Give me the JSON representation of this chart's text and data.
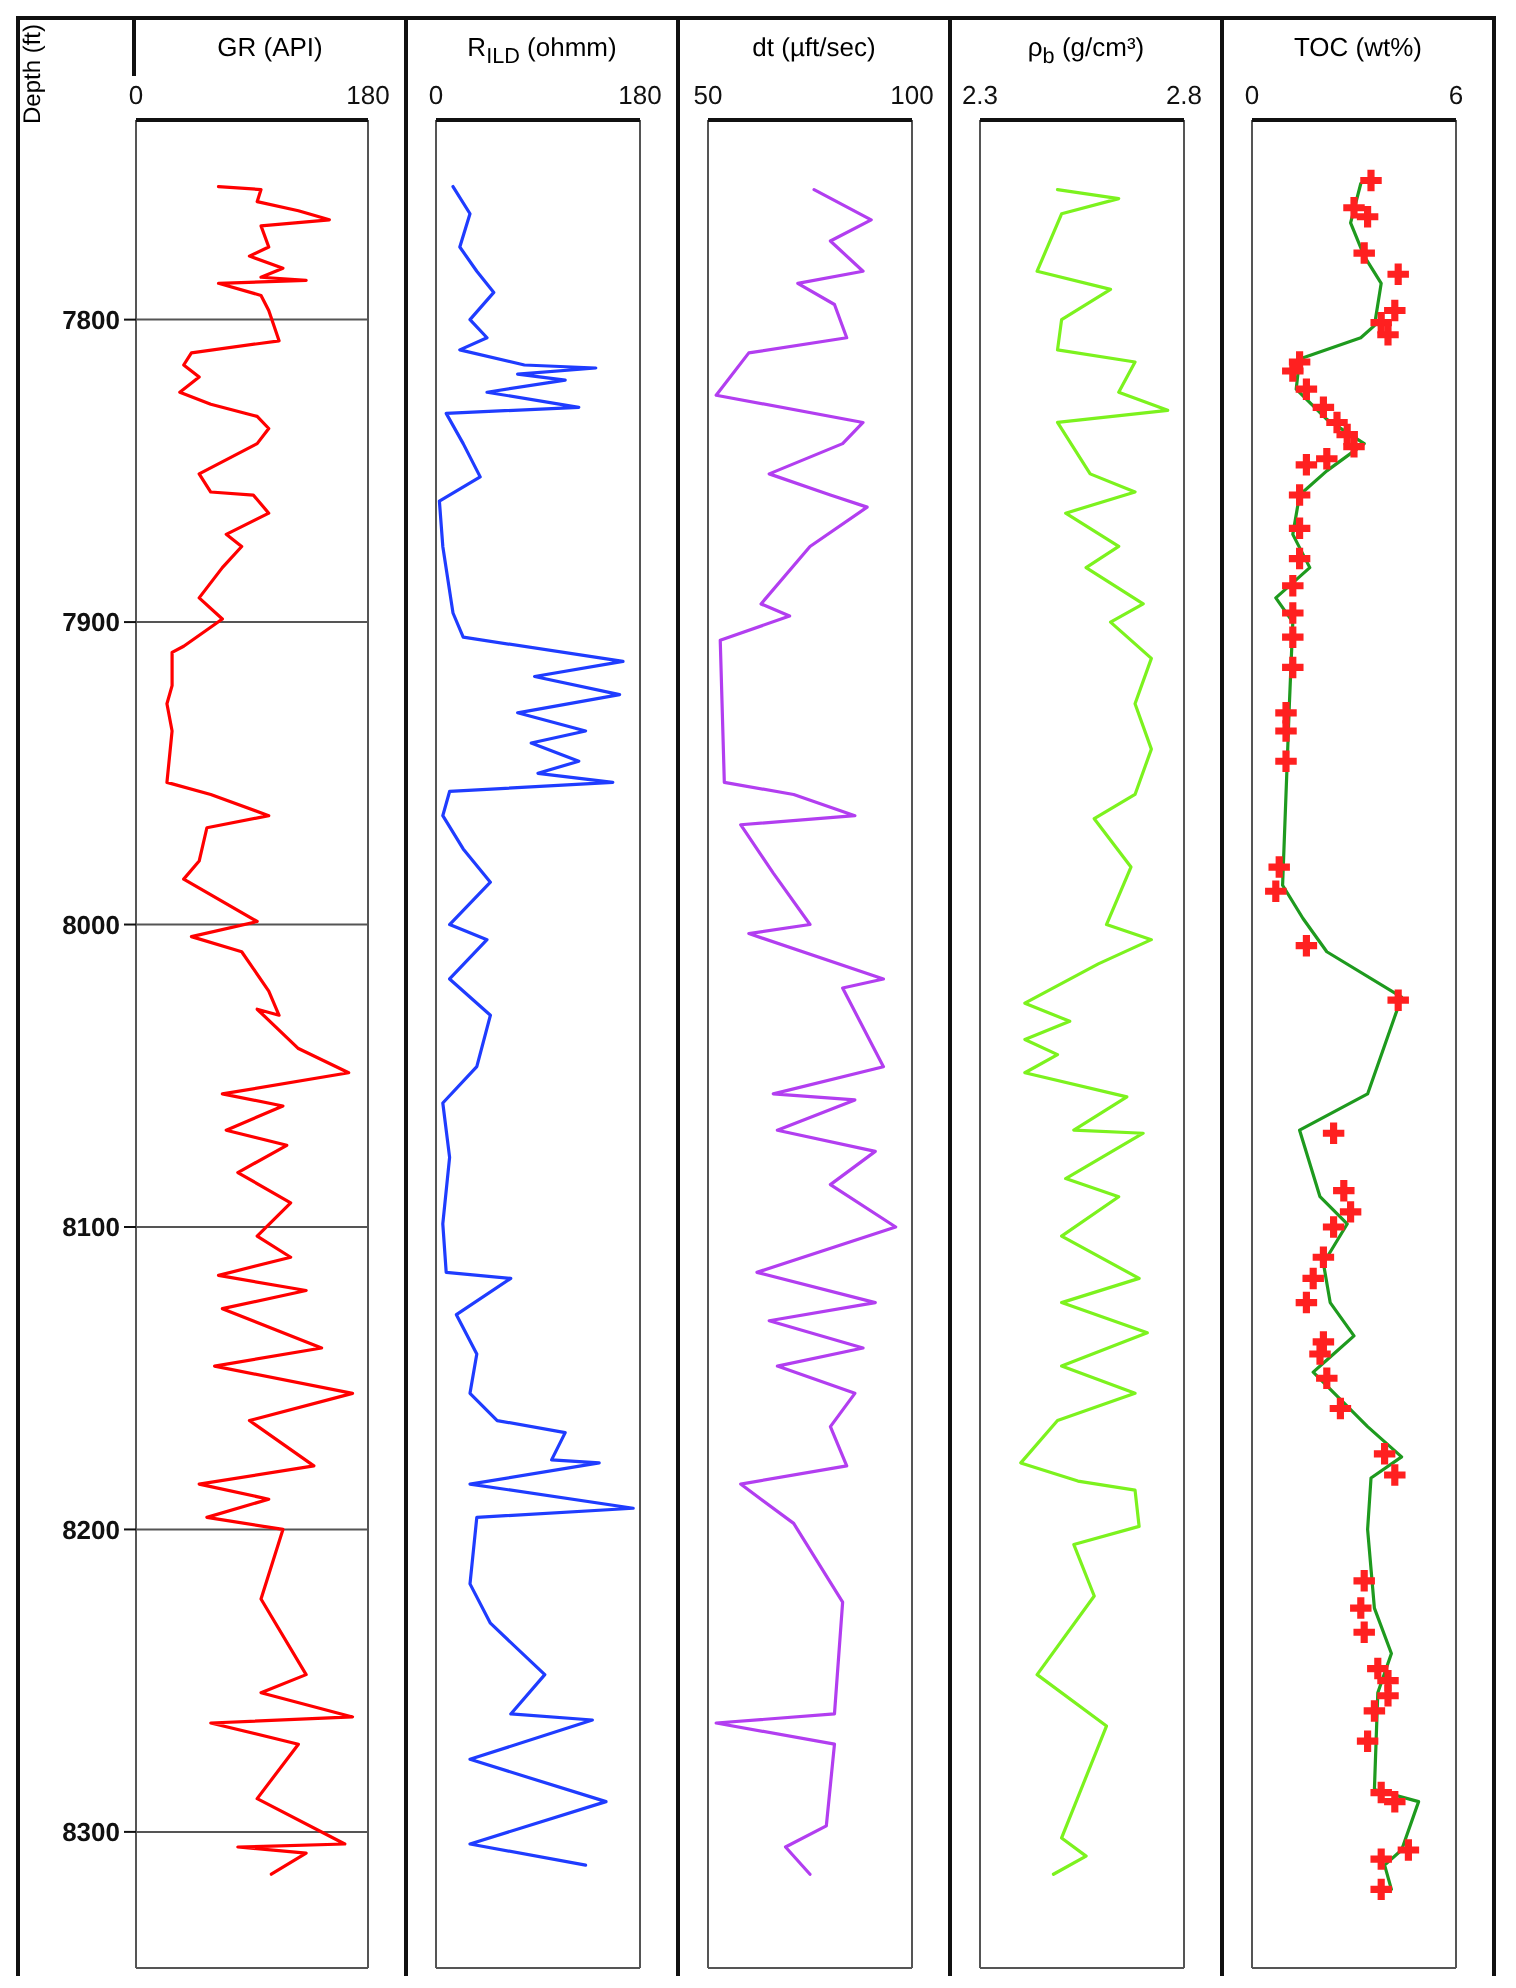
{
  "chart_data": [
    {
      "type": "line",
      "title": "GR (API)",
      "ylabel": "Depth (ft)",
      "xlim": [
        0,
        180
      ],
      "xticks": [
        0,
        180
      ],
      "ylim": [
        8345,
        7734
      ],
      "yticks": [
        7800,
        7900,
        8000,
        8100,
        8200,
        8300
      ],
      "grid": true,
      "series": [
        {
          "color": "#ff0000",
          "x": [
            64,
            97,
            94,
            126,
            150,
            97,
            103,
            88,
            114,
            97,
            132,
            64,
            97,
            103,
            111,
            43,
            37,
            49,
            34,
            58,
            94,
            103,
            94,
            49,
            58,
            91,
            103,
            70,
            82,
            67,
            49,
            67,
            37,
            28,
            28,
            24,
            28,
            24,
            58,
            103,
            55,
            49,
            37,
            94,
            43,
            82,
            103,
            111,
            94,
            126,
            165,
            67,
            114,
            70,
            117,
            79,
            120,
            94,
            120,
            64,
            132,
            67,
            144,
            61,
            168,
            88,
            138,
            49,
            103,
            55,
            114,
            97,
            132,
            97,
            168,
            58,
            126,
            94,
            162,
            79,
            132,
            105
          ],
          "values": [
            7756,
            7757,
            7761,
            7764,
            7767,
            7769,
            7776,
            7779,
            7783,
            7786,
            7787,
            7788,
            7792,
            7797,
            7807,
            7811,
            7815,
            7819,
            7824,
            7828,
            7832,
            7836,
            7841,
            7851,
            7857,
            7858,
            7864,
            7871,
            7875,
            7882,
            7892,
            7899,
            7908,
            7910,
            7921,
            7927,
            7936,
            7953,
            7957,
            7964,
            7968,
            7979,
            7985,
            7999,
            8004,
            8009,
            8022,
            8030,
            8028,
            8041,
            8049,
            8056,
            8060,
            8068,
            8073,
            8082,
            8092,
            8103,
            8110,
            8116,
            8121,
            8127,
            8140,
            8146,
            8155,
            8164,
            8179,
            8185,
            8190,
            8196,
            8200,
            8223,
            8248,
            8254,
            8262,
            8264,
            8271,
            8289,
            8304,
            8305,
            8307,
            8314
          ]
        }
      ]
    },
    {
      "type": "line",
      "title": "R$_{ILD}$ (ohmm)",
      "xlim": [
        0,
        180
      ],
      "xticks": [
        0,
        180
      ],
      "ylim": [
        8345,
        7734
      ],
      "yticks": [
        7800,
        7900,
        8000,
        8100,
        8200,
        8300
      ],
      "grid": true,
      "tick_labels": "x",
      "series": [
        {
          "color": "#1f3cff",
          "x": [
            15,
            30,
            21,
            36,
            51,
            30,
            45,
            21,
            78,
            141,
            72,
            114,
            45,
            126,
            9,
            24,
            39,
            3,
            6,
            15,
            24,
            165,
            87,
            162,
            72,
            132,
            84,
            126,
            90,
            156,
            12,
            6,
            24,
            48,
            12,
            45,
            12,
            48,
            36,
            6,
            12,
            6,
            9,
            66,
            18,
            36,
            30,
            54,
            114,
            102,
            144,
            30,
            174,
            36,
            30,
            48,
            96,
            66,
            138,
            30,
            150,
            30,
            132
          ],
          "values": [
            7756,
            7765,
            7776,
            7784,
            7791,
            7800,
            7806,
            7810,
            7815,
            7816,
            7818,
            7820,
            7824,
            7829,
            7831,
            7841,
            7852,
            7860,
            7875,
            7897,
            7905,
            7913,
            7918,
            7924,
            7930,
            7936,
            7940,
            7946,
            7950,
            7953,
            7956,
            7964,
            7975,
            7986,
            8000,
            8005,
            8018,
            8030,
            8047,
            8059,
            8077,
            8099,
            8115,
            8117,
            8129,
            8142,
            8155,
            8164,
            8168,
            8177,
            8178,
            8185,
            8193,
            8196,
            8218,
            8231,
            8248,
            8261,
            8263,
            8276,
            8290,
            8304,
            8311
          ]
        }
      ]
    },
    {
      "type": "line",
      "title": "dt (µft/sec)",
      "xlim": [
        50,
        100
      ],
      "xticks": [
        50,
        100
      ],
      "ylim": [
        8345,
        7734
      ],
      "yticks": [
        7800,
        7900,
        8000,
        8100,
        8200,
        8300
      ],
      "grid": true,
      "tick_labels": "x",
      "series": [
        {
          "color": "#b23ef0",
          "x": [
            76,
            90,
            80,
            88,
            72,
            81,
            84,
            60,
            52,
            88,
            83,
            65,
            80,
            89,
            75,
            63,
            70,
            53,
            54,
            71,
            86,
            58,
            66,
            75,
            60,
            93,
            83,
            93,
            66,
            86,
            67,
            91,
            80,
            96,
            62,
            91,
            65,
            88,
            67,
            86,
            80,
            84,
            58,
            71,
            83,
            81,
            52,
            81,
            79,
            69,
            75
          ],
          "values": [
            7757,
            7767,
            7774,
            7784,
            7788,
            7795,
            7806,
            7811,
            7825,
            7834,
            7841,
            7851,
            7858,
            7862,
            7875,
            7894,
            7898,
            7906,
            7953,
            7957,
            7964,
            7967,
            7983,
            8000,
            8003,
            8018,
            8021,
            8047,
            8056,
            8058,
            8068,
            8075,
            8086,
            8100,
            8115,
            8125,
            8131,
            8140,
            8146,
            8155,
            8166,
            8179,
            8185,
            8198,
            8224,
            8261,
            8264,
            8271,
            8298,
            8305,
            8314
          ]
        }
      ]
    },
    {
      "type": "line",
      "title": "ρ$_{b}$ (g/cm³)",
      "xlim": [
        2.3,
        2.8
      ],
      "xticks": [
        2.3,
        2.8
      ],
      "ylim": [
        8345,
        7734
      ],
      "yticks": [
        7800,
        7900,
        8000,
        8100,
        8200,
        8300
      ],
      "grid": true,
      "tick_labels": "x",
      "series": [
        {
          "color": "#7cf21e",
          "x": [
            2.49,
            2.64,
            2.5,
            2.44,
            2.62,
            2.5,
            2.49,
            2.68,
            2.64,
            2.76,
            2.49,
            2.57,
            2.68,
            2.51,
            2.64,
            2.56,
            2.7,
            2.62,
            2.72,
            2.68,
            2.72,
            2.68,
            2.58,
            2.67,
            2.61,
            2.72,
            2.59,
            2.41,
            2.52,
            2.41,
            2.49,
            2.41,
            2.66,
            2.53,
            2.7,
            2.51,
            2.64,
            2.5,
            2.69,
            2.5,
            2.71,
            2.5,
            2.68,
            2.49,
            2.4,
            2.54,
            2.68,
            2.69,
            2.53,
            2.58,
            2.44,
            2.61,
            2.5,
            2.56,
            2.48
          ],
          "values": [
            7757,
            7760,
            7765,
            7784,
            7790,
            7800,
            7810,
            7814,
            7824,
            7830,
            7834,
            7851,
            7857,
            7864,
            7875,
            7882,
            7894,
            7900,
            7912,
            7927,
            7942,
            7957,
            7965,
            7981,
            8000,
            8005,
            8013,
            8026,
            8032,
            8038,
            8043,
            8049,
            8057,
            8068,
            8069,
            8084,
            8090,
            8103,
            8117,
            8125,
            8135,
            8146,
            8155,
            8164,
            8178,
            8184,
            8187,
            8199,
            8205,
            8222,
            8248,
            8265,
            8302,
            8308,
            8314
          ]
        }
      ]
    },
    {
      "type": "line",
      "title": "TOC (wt%)",
      "xlim": [
        0,
        6
      ],
      "xticks": [
        0,
        6
      ],
      "ylim": [
        8345,
        7734
      ],
      "yticks": [
        7800,
        7900,
        8000,
        8100,
        8200,
        8300
      ],
      "grid": true,
      "tick_labels": "x",
      "series": [
        {
          "color": "#1e9a1e",
          "x": [
            3.2,
            2.9,
            3.3,
            3.8,
            3.6,
            3.2,
            1.4,
            1.3,
            2.2,
            3.3,
            2.2,
            1.4,
            1.2,
            1.7,
            0.7,
            1.2,
            1.1,
            0.9,
            1.5,
            2.2,
            4.4,
            3.4,
            1.4,
            2.0,
            2.8,
            2.1,
            2.3,
            3.0,
            2.4,
            1.8,
            3.4,
            4.4,
            3.5,
            3.4,
            3.6,
            4.1,
            3.7,
            3.6,
            4.9,
            4.4,
            3.9,
            4.1
          ],
          "values": [
            7755,
            7768,
            7779,
            7788,
            7802,
            7806,
            7813,
            7823,
            7833,
            7841,
            7850,
            7858,
            7871,
            7882,
            7892,
            7900,
            7927,
            7987,
            7998,
            8009,
            8024,
            8056,
            8068,
            8090,
            8099,
            8112,
            8125,
            8136,
            8142,
            8148,
            8166,
            8176,
            8183,
            8200,
            8226,
            8241,
            8254,
            8286,
            8290,
            8306,
            8311,
            8319
          ]
        },
        {
          "type": "scatter",
          "marker": "cross",
          "color": "#ff2020",
          "x": [
            3.5,
            3.0,
            3.4,
            3.3,
            4.3,
            4.2,
            3.8,
            4.0,
            1.4,
            1.2,
            1.6,
            2.1,
            2.5,
            2.8,
            3.0,
            2.2,
            1.6,
            1.4,
            1.4,
            1.4,
            1.2,
            1.2,
            1.2,
            1.2,
            1.0,
            1.0,
            1.0,
            0.8,
            0.7,
            1.6,
            4.3,
            2.4,
            2.7,
            2.9,
            2.4,
            2.1,
            1.8,
            1.6,
            2.1,
            2.0,
            2.2,
            2.6,
            3.9,
            4.2,
            3.3,
            3.2,
            3.3,
            3.7,
            4.0,
            4.0,
            3.6,
            3.4,
            3.8,
            4.2,
            4.6,
            3.8,
            3.8
          ],
          "values": [
            7754,
            7763,
            7766,
            7778,
            7785,
            7797,
            7801,
            7805,
            7814,
            7817,
            7823,
            7829,
            7834,
            7838,
            7842,
            7846,
            7848,
            7858,
            7869,
            7879,
            7888,
            7897,
            7905,
            7915,
            7930,
            7936,
            7946,
            7981,
            7989,
            8007,
            8025,
            8069,
            8088,
            8095,
            8100,
            8110,
            8117,
            8125,
            8138,
            8142,
            8150,
            8160,
            8175,
            8182,
            8217,
            8226,
            8234,
            8246,
            8250,
            8255,
            8260,
            8270,
            8287,
            8290,
            8306,
            8309,
            8319
          ]
        }
      ]
    }
  ]
}
